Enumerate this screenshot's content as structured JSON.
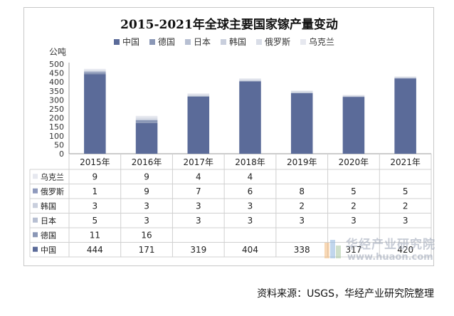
{
  "chart_data": {
    "type": "bar",
    "stacked": true,
    "title": "2015-2021年全球主要国家镓产量变动",
    "ylabel": "公吨",
    "ylim": [
      0,
      500
    ],
    "yticks": [
      0,
      50,
      100,
      150,
      200,
      250,
      300,
      350,
      400,
      450,
      500
    ],
    "categories": [
      "2015年",
      "2016年",
      "2017年",
      "2018年",
      "2019年",
      "2020年",
      "2021年"
    ],
    "legend_position": "top",
    "series": [
      {
        "name": "中国",
        "color": "#5b6b99",
        "values": [
          444,
          171,
          319,
          404,
          338,
          317,
          420
        ]
      },
      {
        "name": "德国",
        "color": "#8a97b6",
        "values": [
          11,
          16,
          null,
          null,
          null,
          null,
          null
        ]
      },
      {
        "name": "日本",
        "color": "#b7bfd2",
        "values": [
          5,
          3,
          3,
          3,
          3,
          3,
          3
        ]
      },
      {
        "name": "韩国",
        "color": "#c9cfdd",
        "values": [
          3,
          3,
          3,
          3,
          2,
          2,
          2
        ]
      },
      {
        "name": "俄罗斯",
        "color": "#d9dde7",
        "values": [
          1,
          9,
          7,
          6,
          8,
          5,
          5
        ]
      },
      {
        "name": "乌克兰",
        "color": "#e6e8ef",
        "values": [
          9,
          9,
          4,
          4,
          null,
          null,
          null
        ]
      }
    ],
    "table_rows": [
      {
        "label": "乌克兰",
        "color": "#e6e8ef",
        "values": [
          "9",
          "9",
          "4",
          "4",
          "",
          "",
          ""
        ]
      },
      {
        "label": "俄罗斯",
        "color": "#8f9abd",
        "values": [
          "1",
          "9",
          "7",
          "6",
          "8",
          "5",
          "5"
        ]
      },
      {
        "label": "韩国",
        "color": "#c9cfdd",
        "values": [
          "3",
          "3",
          "3",
          "3",
          "2",
          "2",
          "2"
        ]
      },
      {
        "label": "日本",
        "color": "#b7bfd2",
        "values": [
          "5",
          "3",
          "3",
          "3",
          "3",
          "3",
          "3"
        ]
      },
      {
        "label": "德国",
        "color": "#8a97b6",
        "values": [
          "11",
          "16",
          "",
          "",
          "",
          "",
          ""
        ]
      },
      {
        "label": "中国",
        "color": "#5b6b99",
        "values": [
          "444",
          "171",
          "319",
          "404",
          "338",
          "317",
          "420"
        ]
      }
    ]
  },
  "watermark": {
    "name": "华经产业研究院",
    "url": "www.huaon.com"
  },
  "source_note": "资料来源：USGS，华经产业研究院整理"
}
